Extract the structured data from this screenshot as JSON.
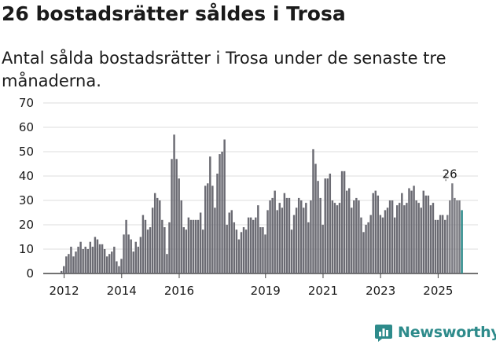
{
  "title": "26 bostadsrätter såldes i Trosa",
  "subtitle": "Antal sålda bostadsrätter i Trosa under de senaste tre månaderna.",
  "brand": {
    "name": "Newsworthy",
    "color": "#2e8b8b",
    "icon": "bar-chart-logo-icon"
  },
  "chart_data": {
    "type": "bar",
    "title": "26 bostadsrätter såldes i Trosa",
    "xlabel": "",
    "ylabel": "",
    "ylim": [
      0,
      70
    ],
    "yticks": [
      0,
      10,
      20,
      30,
      40,
      50,
      60,
      70
    ],
    "grid": true,
    "bar_color": "#6b6b73",
    "highlight_color": "#2e8b8b",
    "x_start": {
      "year": 2011,
      "month": 12
    },
    "xticks": [
      {
        "label": "2012",
        "index": 1
      },
      {
        "label": "2014",
        "index": 25
      },
      {
        "label": "2016",
        "index": 49
      },
      {
        "label": "2019",
        "index": 85
      },
      {
        "label": "2021",
        "index": 109
      },
      {
        "label": "2023",
        "index": 133
      },
      {
        "label": "2025",
        "index": 157
      }
    ],
    "values": [
      1,
      3,
      7,
      8,
      11,
      7,
      9,
      11,
      13,
      10,
      11,
      10,
      13,
      11,
      15,
      14,
      12,
      12,
      10,
      7,
      8,
      9,
      11,
      5,
      3,
      6,
      16,
      22,
      16,
      14,
      9,
      13,
      11,
      15,
      24,
      22,
      18,
      19,
      27,
      33,
      31,
      30,
      22,
      19,
      8,
      21,
      47,
      57,
      47,
      39,
      30,
      19,
      18,
      23,
      22,
      22,
      22,
      22,
      25,
      18,
      36,
      37,
      48,
      36,
      27,
      41,
      49,
      50,
      55,
      20,
      25,
      26,
      21,
      18,
      14,
      17,
      19,
      18,
      23,
      23,
      22,
      23,
      28,
      19,
      19,
      16,
      26,
      30,
      31,
      34,
      26,
      29,
      27,
      33,
      31,
      31,
      18,
      24,
      27,
      31,
      30,
      27,
      29,
      21,
      30,
      51,
      45,
      38,
      31,
      20,
      39,
      39,
      41,
      30,
      29,
      28,
      29,
      42,
      42,
      34,
      35,
      27,
      30,
      31,
      30,
      23,
      17,
      20,
      21,
      24,
      33,
      34,
      32,
      24,
      23,
      26,
      27,
      30,
      30,
      23,
      28,
      29,
      33,
      28,
      29,
      35,
      34,
      36,
      30,
      29,
      27,
      34,
      32,
      32,
      28,
      29,
      22,
      22,
      24,
      24,
      22,
      24,
      30,
      37,
      31,
      30,
      30,
      26
    ],
    "annotations": [
      {
        "text": "26",
        "index": 163
      }
    ]
  }
}
